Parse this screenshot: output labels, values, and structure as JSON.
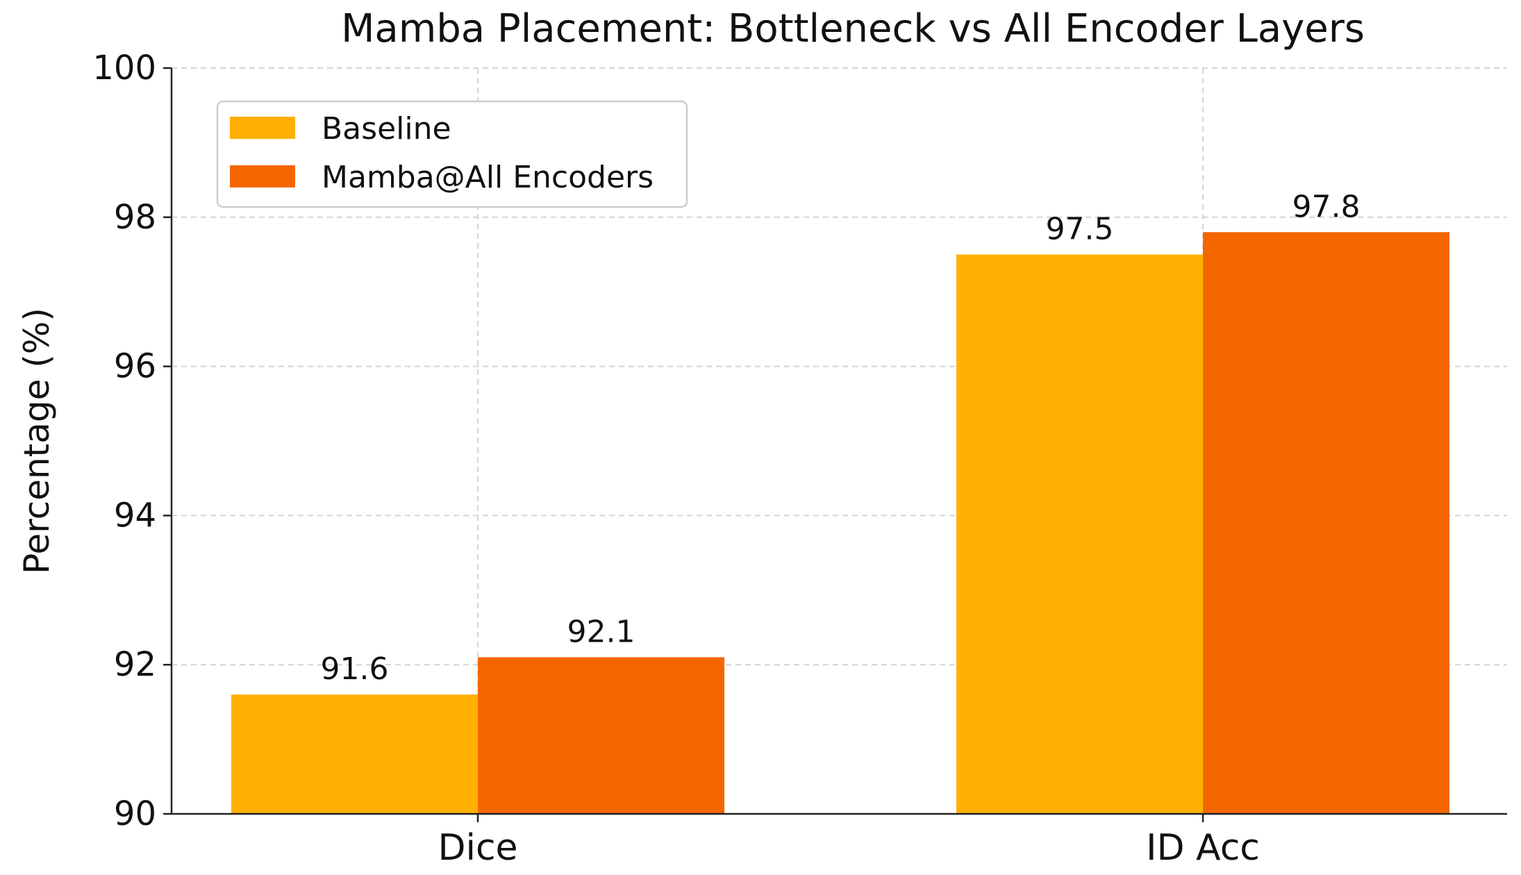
{
  "chart_data": {
    "type": "bar",
    "title": "Mamba Placement: Bottleneck vs All Encoder Layers",
    "xlabel": "",
    "ylabel": "Percentage (%)",
    "categories": [
      "Dice",
      "ID Acc"
    ],
    "series": [
      {
        "name": "Baseline",
        "values": [
          91.6,
          97.5
        ],
        "color": "#FFB000"
      },
      {
        "name": "Mamba@All Encoders",
        "values": [
          92.1,
          97.8
        ],
        "color": "#F46700"
      }
    ],
    "data_labels": [
      [
        "91.6",
        "97.5"
      ],
      [
        "92.1",
        "97.8"
      ]
    ],
    "ylim": [
      90,
      100
    ],
    "yticks": [
      90,
      92,
      94,
      96,
      98,
      100
    ],
    "ytick_labels": [
      "90",
      "92",
      "94",
      "96",
      "98",
      "100"
    ],
    "grid": true,
    "legend_position": "top-left"
  }
}
